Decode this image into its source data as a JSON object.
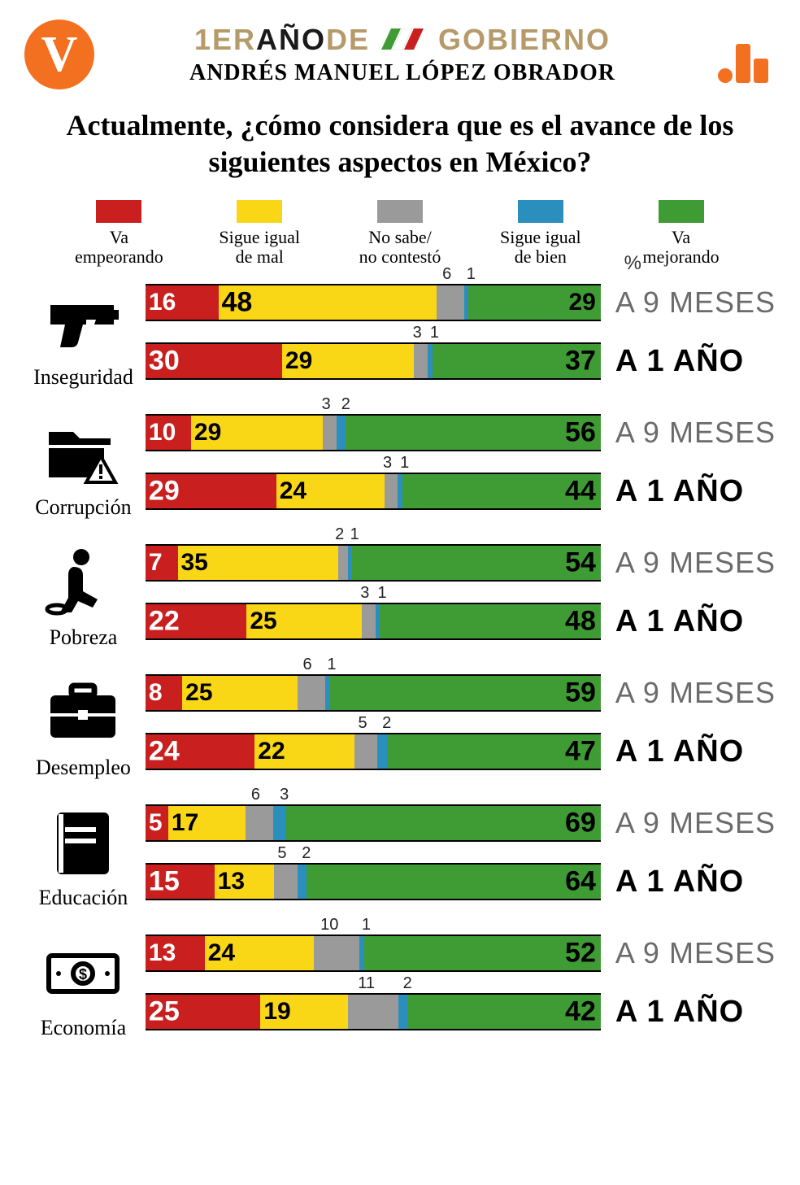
{
  "colors": {
    "empeorando": "#c9201f",
    "igual_mal": "#f9d616",
    "nosabe": "#9a9a9a",
    "igual_bien": "#2a8fbd",
    "mejorando": "#3f9c35",
    "brand_orange": "#f37021",
    "brand_tan": "#b59a6a",
    "text_dark": "#1a1a1a"
  },
  "header": {
    "logo_left_letter": "V",
    "title_part1": "1ER",
    "title_part2": "AÑO",
    "title_part3": "DE",
    "title_part4": "GOBIERNO",
    "subtitle": "ANDRÉS MANUEL LÓPEZ OBRADOR"
  },
  "question": "Actualmente, ¿cómo considera que es el avance de los siguientes aspectos en México?",
  "pct_sign": "%",
  "legend": [
    {
      "label": "Va\nempeorando",
      "color_key": "empeorando"
    },
    {
      "label": "Sigue igual\nde mal",
      "color_key": "igual_mal"
    },
    {
      "label": "No sabe/\nno contestó",
      "color_key": "nosabe"
    },
    {
      "label": "Sigue igual\nde bien",
      "color_key": "igual_bien"
    },
    {
      "label": "Va\nmejorando",
      "color_key": "mejorando"
    }
  ],
  "periods": {
    "nine": "A 9 MESES",
    "one": "A 1 AÑO"
  },
  "fontsizes": {
    "inlabel_big": 34,
    "inlabel_med": 30,
    "endlabel_big": 34,
    "endlabel_med": 30,
    "toplabel": 20
  },
  "topics": [
    {
      "name": "Inseguridad",
      "icon": "gun",
      "rows": [
        {
          "period": "nine",
          "values": [
            16,
            48,
            6,
            1,
            29
          ],
          "labels": {
            "0": {
              "text": "16",
              "pos": "in",
              "color": "white",
              "size": "med"
            },
            "1": {
              "text": "48",
              "pos": "in",
              "color": "black",
              "size": "big"
            },
            "2": {
              "text": "6",
              "pos": "top"
            },
            "3": {
              "text": "1",
              "pos": "top"
            },
            "4": {
              "text": "29",
              "pos": "end",
              "color": "black",
              "size": "med"
            }
          }
        },
        {
          "period": "one",
          "values": [
            30,
            29,
            3,
            1,
            37
          ],
          "labels": {
            "0": {
              "text": "30",
              "pos": "in",
              "color": "white",
              "size": "big"
            },
            "1": {
              "text": "29",
              "pos": "in",
              "color": "black",
              "size": "med"
            },
            "2": {
              "text": "3",
              "pos": "top"
            },
            "3": {
              "text": "1",
              "pos": "top"
            },
            "4": {
              "text": "37",
              "pos": "end",
              "color": "black",
              "size": "big"
            }
          }
        }
      ]
    },
    {
      "name": "Corrupción",
      "icon": "folder-warn",
      "rows": [
        {
          "period": "nine",
          "values": [
            10,
            29,
            3,
            2,
            56
          ],
          "labels": {
            "0": {
              "text": "10",
              "pos": "in",
              "color": "white",
              "size": "med"
            },
            "1": {
              "text": "29",
              "pos": "in",
              "color": "black",
              "size": "med"
            },
            "2": {
              "text": "3",
              "pos": "top"
            },
            "3": {
              "text": "2",
              "pos": "top"
            },
            "4": {
              "text": "56",
              "pos": "end",
              "color": "black",
              "size": "big"
            }
          }
        },
        {
          "period": "one",
          "values": [
            29,
            24,
            3,
            1,
            44
          ],
          "labels": {
            "0": {
              "text": "29",
              "pos": "in",
              "color": "white",
              "size": "big"
            },
            "1": {
              "text": "24",
              "pos": "in",
              "color": "black",
              "size": "med"
            },
            "2": {
              "text": "3",
              "pos": "top"
            },
            "3": {
              "text": "1",
              "pos": "top"
            },
            "4": {
              "text": "44",
              "pos": "end",
              "color": "black",
              "size": "big"
            }
          }
        }
      ]
    },
    {
      "name": "Pobreza",
      "icon": "poverty",
      "rows": [
        {
          "period": "nine",
          "values": [
            7,
            35,
            2,
            1,
            54
          ],
          "labels": {
            "0": {
              "text": "7",
              "pos": "in",
              "color": "white",
              "size": "med"
            },
            "1": {
              "text": "35",
              "pos": "in",
              "color": "black",
              "size": "med"
            },
            "2": {
              "text": "2",
              "pos": "top"
            },
            "3": {
              "text": "1",
              "pos": "top"
            },
            "4": {
              "text": "54",
              "pos": "end",
              "color": "black",
              "size": "big"
            }
          }
        },
        {
          "period": "one",
          "values": [
            22,
            25,
            3,
            1,
            48
          ],
          "labels": {
            "0": {
              "text": "22",
              "pos": "in",
              "color": "white",
              "size": "big"
            },
            "1": {
              "text": "25",
              "pos": "in",
              "color": "black",
              "size": "med"
            },
            "2": {
              "text": "3",
              "pos": "top"
            },
            "3": {
              "text": "1",
              "pos": "top"
            },
            "4": {
              "text": "48",
              "pos": "end",
              "color": "black",
              "size": "big"
            }
          }
        }
      ]
    },
    {
      "name": "Desempleo",
      "icon": "briefcase",
      "rows": [
        {
          "period": "nine",
          "values": [
            8,
            25,
            6,
            1,
            59
          ],
          "labels": {
            "0": {
              "text": "8",
              "pos": "in",
              "color": "white",
              "size": "med"
            },
            "1": {
              "text": "25",
              "pos": "in",
              "color": "black",
              "size": "med"
            },
            "2": {
              "text": "6",
              "pos": "top"
            },
            "3": {
              "text": "1",
              "pos": "top"
            },
            "4": {
              "text": "59",
              "pos": "end",
              "color": "black",
              "size": "big"
            }
          }
        },
        {
          "period": "one",
          "values": [
            24,
            22,
            5,
            2,
            47
          ],
          "labels": {
            "0": {
              "text": "24",
              "pos": "in",
              "color": "white",
              "size": "big"
            },
            "1": {
              "text": "22",
              "pos": "in",
              "color": "black",
              "size": "med"
            },
            "2": {
              "text": "5",
              "pos": "top"
            },
            "3": {
              "text": "2",
              "pos": "top"
            },
            "4": {
              "text": "47",
              "pos": "end",
              "color": "black",
              "size": "big"
            }
          }
        }
      ]
    },
    {
      "name": "Educación",
      "icon": "book",
      "rows": [
        {
          "period": "nine",
          "values": [
            5,
            17,
            6,
            3,
            69
          ],
          "labels": {
            "0": {
              "text": "5",
              "pos": "in",
              "color": "white",
              "size": "med"
            },
            "1": {
              "text": "17",
              "pos": "in",
              "color": "black",
              "size": "med"
            },
            "2": {
              "text": "6",
              "pos": "top"
            },
            "3": {
              "text": "3",
              "pos": "top"
            },
            "4": {
              "text": "69",
              "pos": "end",
              "color": "black",
              "size": "big"
            }
          }
        },
        {
          "period": "one",
          "values": [
            15,
            13,
            5,
            2,
            64
          ],
          "labels": {
            "0": {
              "text": "15",
              "pos": "in",
              "color": "white",
              "size": "big"
            },
            "1": {
              "text": "13",
              "pos": "in",
              "color": "black",
              "size": "med"
            },
            "2": {
              "text": "5",
              "pos": "top"
            },
            "3": {
              "text": "2",
              "pos": "top"
            },
            "4": {
              "text": "64",
              "pos": "end",
              "color": "black",
              "size": "big"
            }
          }
        }
      ]
    },
    {
      "name": "Economía",
      "icon": "money",
      "rows": [
        {
          "period": "nine",
          "values": [
            13,
            24,
            10,
            1,
            52
          ],
          "labels": {
            "0": {
              "text": "13",
              "pos": "in",
              "color": "white",
              "size": "med"
            },
            "1": {
              "text": "24",
              "pos": "in",
              "color": "black",
              "size": "med"
            },
            "2": {
              "text": "10",
              "pos": "top"
            },
            "3": {
              "text": "1",
              "pos": "top"
            },
            "4": {
              "text": "52",
              "pos": "end",
              "color": "black",
              "size": "big"
            }
          }
        },
        {
          "period": "one",
          "values": [
            25,
            19,
            11,
            2,
            42
          ],
          "labels": {
            "0": {
              "text": "25",
              "pos": "in",
              "color": "white",
              "size": "big"
            },
            "1": {
              "text": "19",
              "pos": "in",
              "color": "black",
              "size": "med"
            },
            "2": {
              "text": "11",
              "pos": "top"
            },
            "3": {
              "text": "2",
              "pos": "top"
            },
            "4": {
              "text": "42",
              "pos": "end",
              "color": "black",
              "size": "big"
            }
          }
        }
      ]
    }
  ]
}
